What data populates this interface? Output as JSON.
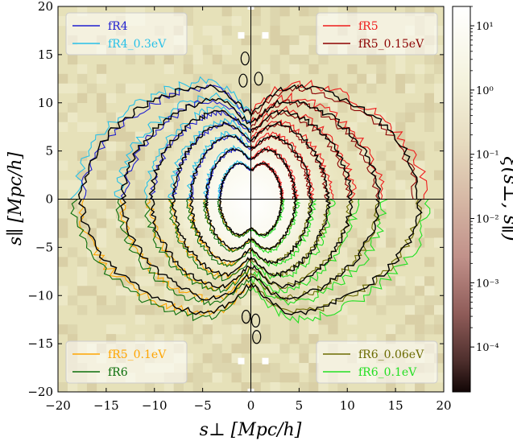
{
  "chart_data": {
    "type": "heatmap",
    "xlabel": "s⊥ [Mpc/h]",
    "ylabel": "s∥ [Mpc/h]",
    "xlim": [
      -20,
      20
    ],
    "ylim": [
      -20,
      20
    ],
    "x_ticks": [
      "−20",
      "−15",
      "−10",
      "−5",
      "0",
      "5",
      "10",
      "15",
      "20"
    ],
    "y_ticks": [
      "−20",
      "−15",
      "−10",
      "−5",
      "0",
      "5",
      "10",
      "15",
      "20"
    ],
    "colorbar": {
      "label": "ξ(s⊥, s∥)",
      "scale": "log",
      "range": [
        2e-05,
        20
      ],
      "ticks": [
        "10¹",
        "10⁰",
        "10⁻¹",
        "10⁻²",
        "10⁻³",
        "10⁻⁴"
      ],
      "tick_values": [
        10,
        1,
        0.1,
        0.01,
        0.001,
        0.0001
      ]
    },
    "contour_levels_radii": [
      {
        "a": 3.2,
        "b": 4.2
      },
      {
        "a": 4.6,
        "b": 5.8
      },
      {
        "a": 6.2,
        "b": 7.3
      },
      {
        "a": 8.0,
        "b": 8.6
      },
      {
        "a": 10.3,
        "b": 9.8
      },
      {
        "a": 13.2,
        "b": 11.0
      },
      {
        "a": 17.5,
        "b": 12.4
      }
    ],
    "legend_top_left": [
      {
        "label": "fR4",
        "color": "#1f1fd0"
      },
      {
        "label": "fR4_0.3eV",
        "color": "#27c0e8"
      }
    ],
    "legend_top_right": [
      {
        "label": "fR5",
        "color": "#ee1c1c"
      },
      {
        "label": "fR5_0.15eV",
        "color": "#8b0000"
      }
    ],
    "legend_bottom_left": [
      {
        "label": "fR5_0.1eV",
        "color": "#ffa500"
      },
      {
        "label": "fR6",
        "color": "#0a6e0a"
      }
    ],
    "legend_bottom_right": [
      {
        "label": "fR6_0.06eV",
        "color": "#6b6b00"
      },
      {
        "label": "fR6_0.1eV",
        "color": "#22e022"
      }
    ],
    "reference_color": "#000000",
    "background_color": "#e6e1b9",
    "grid": false
  }
}
